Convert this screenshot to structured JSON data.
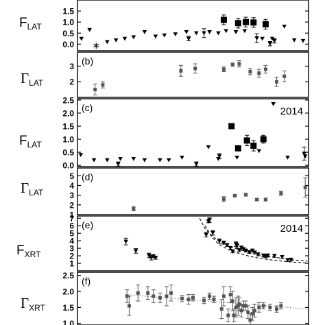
{
  "chart_data": [
    {
      "type": "scatter",
      "panel_label": "",
      "ylabel_main": "F",
      "ylabel_sub": "LAT",
      "annotation": "",
      "ylim": [
        -0.3,
        2.0
      ],
      "yticks": [
        "0.0",
        "0.5",
        "1.0",
        "1.5"
      ],
      "series": [
        {
          "marker": "triangle-down",
          "x": [
            0.18,
            0.55,
            1.35,
            1.75,
            2.15,
            2.55,
            3.05,
            3.55,
            3.95,
            4.45,
            4.95,
            5.4,
            6.0,
            6.4,
            6.75,
            7.2,
            7.6,
            8.4,
            8.85,
            9.4,
            9.85,
            10.25
          ],
          "y": [
            0.25,
            0.65,
            0.1,
            0.18,
            0.25,
            0.32,
            0.55,
            0.35,
            0.4,
            0.45,
            0.55,
            0.5,
            0.55,
            0.5,
            0.6,
            0.55,
            0.6,
            0.25,
            0.25,
            0.8,
            0.18,
            0.15
          ]
        },
        {
          "marker": "asterisk",
          "x": [
            0.85
          ],
          "y": [
            -0.05
          ]
        },
        {
          "marker": "triangle-down-err",
          "x": [
            5.05,
            5.75,
            8.15,
            8.75,
            8.95
          ],
          "y": [
            0.25,
            0.5,
            0.27,
            0.02,
            0.15
          ],
          "err": [
            0.1,
            0.2,
            0.2,
            0.1,
            0.1
          ]
        },
        {
          "marker": "square-filled",
          "x": [
            6.65,
            7.3,
            7.65,
            8.0,
            8.55
          ],
          "y": [
            1.1,
            0.95,
            1.0,
            0.98,
            0.9
          ],
          "err": [
            0.22,
            0.22,
            0.22,
            0.22,
            0.22
          ]
        }
      ]
    },
    {
      "type": "scatter",
      "panel_label": "(b)",
      "ylabel_main": "Γ",
      "ylabel_sub": "LAT",
      "annotation": "",
      "ylim": [
        1.0,
        3.9
      ],
      "yticks": [
        "2",
        "3"
      ],
      "series": [
        {
          "marker": "square-small",
          "x": [
            0.8,
            1.15,
            4.7,
            5.35,
            6.65,
            7.05,
            7.35,
            7.85,
            8.25,
            8.55,
            9.05,
            9.4
          ],
          "y": [
            1.5,
            1.8,
            2.7,
            2.85,
            2.8,
            3.1,
            3.15,
            2.65,
            2.55,
            2.8,
            2.0,
            2.35
          ],
          "err": [
            0.35,
            0.2,
            0.35,
            0.3,
            0.15,
            0.1,
            0.2,
            0.2,
            0.25,
            0.25,
            0.3,
            0.35
          ]
        }
      ]
    },
    {
      "type": "scatter",
      "panel_label": "(c)",
      "ylabel_main": "F",
      "ylabel_sub": "LAT",
      "annotation": "2014",
      "ylim": [
        -0.05,
        2.55
      ],
      "yticks": [
        "0.0",
        "0.5",
        "1.0",
        "1.5",
        "2.0",
        "2.5"
      ],
      "series": [
        {
          "marker": "triangle-down",
          "x": [
            0.15,
            0.75,
            1.35,
            1.95,
            2.55,
            3.05,
            3.75,
            4.15,
            4.75,
            5.95,
            6.4,
            7.25,
            8.25,
            8.9,
            9.55,
            10.35
          ],
          "y": [
            0.4,
            0.2,
            0.2,
            0.25,
            0.25,
            0.2,
            0.2,
            0.2,
            0.3,
            0.7,
            0.25,
            0.3,
            0.55,
            2.35,
            0.3,
            0.35
          ]
        },
        {
          "marker": "triangle-down-err",
          "x": [
            1.85,
            5.4,
            6.45,
            10.3
          ],
          "y": [
            0.05,
            0.05,
            0.35,
            0.45
          ],
          "err": [
            0.08,
            0.08,
            0.1,
            0.25
          ]
        },
        {
          "marker": "square-filled",
          "x": [
            7.0,
            7.3,
            7.7,
            8.0,
            8.45
          ],
          "y": [
            1.5,
            0.65,
            0.95,
            0.75,
            1.0
          ],
          "err": [
            0.1,
            0.08,
            0.2,
            0.2,
            0.15
          ]
        }
      ]
    },
    {
      "type": "scatter",
      "panel_label": "(d)",
      "ylabel_main": "Γ",
      "ylabel_sub": "LAT",
      "annotation": "",
      "ylim": [
        1.0,
        5.8
      ],
      "yticks": [
        "1",
        "2",
        "3",
        "4",
        "5"
      ],
      "series": [
        {
          "marker": "square-small",
          "x": [
            2.55,
            6.65,
            7.15,
            7.65,
            8.15,
            8.55,
            9.25,
            10.35
          ],
          "y": [
            1.6,
            2.6,
            2.95,
            3.05,
            2.55,
            2.55,
            3.2,
            3.8
          ],
          "err": [
            0.2,
            0.25,
            0.1,
            0.15,
            0.1,
            0.15,
            0.2,
            1.0
          ]
        }
      ]
    },
    {
      "type": "scatter",
      "panel_label": "(e)",
      "ylabel_main": "F",
      "ylabel_sub": "XRT",
      "annotation": "2014",
      "ylim": [
        0,
        7.3
      ],
      "yticks": [
        "1",
        "2",
        "3",
        "4",
        "5",
        "6",
        "7"
      ],
      "series": [
        {
          "marker": "triangle-down-err",
          "x": [
            2.2,
            2.65,
            3.25,
            3.35,
            3.45,
            3.55,
            5.85,
            5.95,
            6.0,
            6.15,
            6.45,
            6.65,
            6.8,
            6.95,
            7.05,
            7.2,
            7.25,
            7.35,
            7.45,
            7.55,
            7.65,
            7.8,
            7.95,
            8.05,
            8.2,
            8.45,
            8.55,
            8.65,
            8.95,
            9.3,
            9.55,
            9.7
          ],
          "y": [
            3.9,
            2.65,
            2.05,
            1.75,
            1.95,
            1.75,
            4.8,
            6.6,
            6.75,
            5.05,
            3.95,
            3.75,
            3.45,
            3.05,
            2.6,
            3.55,
            3.35,
            2.75,
            3.1,
            2.9,
            2.7,
            2.5,
            2.7,
            2.45,
            2.2,
            2.05,
            1.95,
            2.05,
            2.0,
            1.85,
            1.45,
            1.5
          ],
          "err": [
            0.45,
            0.3,
            0.3,
            0.3,
            0.2,
            0.2,
            0.3,
            0.2,
            0.3,
            0.3,
            0.3,
            0.2,
            0.2,
            0.2,
            0.2,
            0.3,
            0.3,
            0.2,
            0.2,
            0.2,
            0.2,
            0.2,
            0.2,
            0.2,
            0.2,
            0.2,
            0.2,
            0.2,
            0.2,
            0.2,
            0.2,
            0.2
          ]
        }
      ],
      "curves": [
        {
          "style": "dashed",
          "x": [
            5.55,
            5.8,
            6.1,
            6.4,
            6.8,
            7.3,
            7.8,
            8.3,
            8.8,
            9.3,
            9.8,
            10.45
          ],
          "y": [
            7.0,
            5.6,
            4.7,
            4.0,
            3.4,
            2.85,
            2.45,
            2.1,
            1.9,
            1.65,
            1.45,
            1.3
          ]
        },
        {
          "style": "dashed",
          "x": [
            5.8,
            6.1,
            6.4,
            6.8,
            7.3,
            7.8,
            8.3,
            8.8,
            9.3,
            9.8,
            10.45
          ],
          "y": [
            6.0,
            4.5,
            3.6,
            2.9,
            2.35,
            1.95,
            1.65,
            1.45,
            1.3,
            1.15,
            1.05
          ]
        }
      ]
    },
    {
      "type": "scatter",
      "panel_label": "(f)",
      "ylabel_main": "Γ",
      "ylabel_sub": "XRT",
      "annotation": "",
      "ylim": [
        0.95,
        2.6
      ],
      "yticks": [
        "1.0",
        "1.5",
        "2.0",
        "2.5"
      ],
      "series": [
        {
          "marker": "square-small",
          "x": [
            2.25,
            2.35,
            2.75,
            3.2,
            3.45,
            3.75,
            4.05,
            4.25,
            4.75,
            5.05,
            5.25,
            5.75,
            6.0,
            6.2,
            6.55,
            6.65,
            6.85,
            6.95,
            7.05,
            7.1,
            7.2,
            7.3,
            7.35,
            7.45,
            7.55,
            7.65,
            7.75,
            7.85,
            7.95,
            8.05,
            8.25,
            8.45,
            8.75,
            9.05,
            9.25
          ],
          "y": [
            1.85,
            1.55,
            1.95,
            1.95,
            1.85,
            1.8,
            1.85,
            1.95,
            1.78,
            1.75,
            1.8,
            1.72,
            1.85,
            1.75,
            1.45,
            1.85,
            1.25,
            1.9,
            1.7,
            1.25,
            1.5,
            1.55,
            1.6,
            1.4,
            1.55,
            1.55,
            1.35,
            1.1,
            1.3,
            1.4,
            1.5,
            1.55,
            1.5,
            1.45,
            1.55
          ],
          "err": [
            0.2,
            0.3,
            0.25,
            0.2,
            0.2,
            0.15,
            0.3,
            0.25,
            0.1,
            0.15,
            0.1,
            0.1,
            0.1,
            0.1,
            0.3,
            0.3,
            0.2,
            0.25,
            0.3,
            0.2,
            0.3,
            0.3,
            0.2,
            0.2,
            0.15,
            0.15,
            0.2,
            0.2,
            0.2,
            0.2,
            0.15,
            0.1,
            0.1,
            0.1,
            0.1
          ]
        }
      ],
      "curves": [
        {
          "style": "dotted",
          "x": [
            2.2,
            10.45
          ],
          "y": [
            1.9,
            1.45
          ]
        }
      ]
    }
  ]
}
